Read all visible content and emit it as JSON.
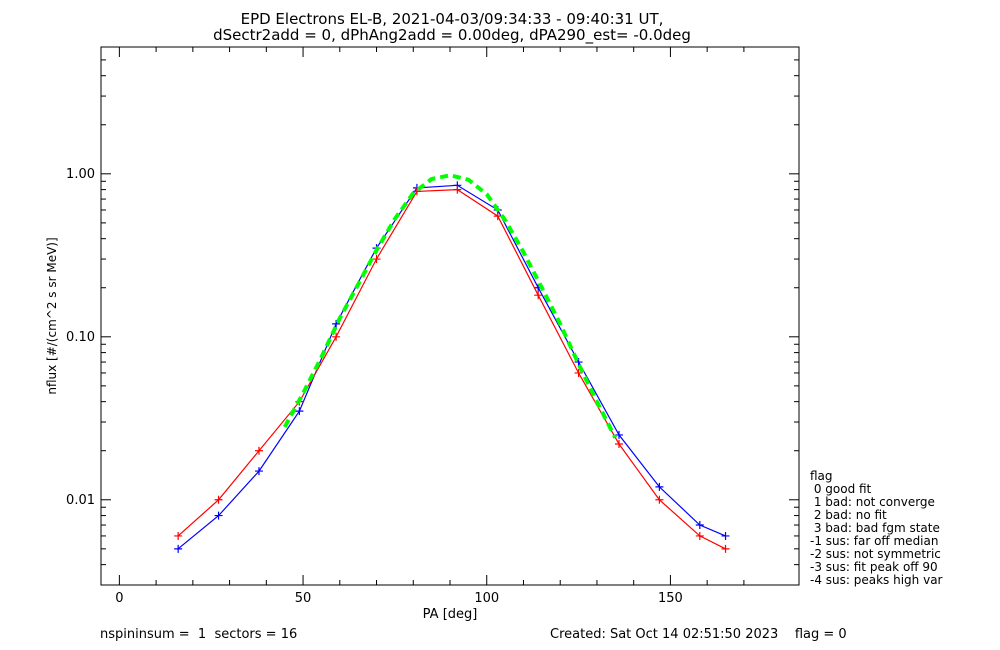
{
  "chart_data": {
    "type": "line",
    "title_line1": "EPD Electrons EL-B, 2021-04-03/09:34:33 - 09:40:31 UT,",
    "title_line2": "dSectr2add = 0, dPhAng2add = 0.00deg, dPA290_est=  -0.0deg",
    "xlabel": "PA [deg]",
    "ylabel": "nflux [#/(cm^2 s sr MeV)]",
    "xlim": [
      -5,
      185
    ],
    "ylim": [
      0.003,
      6.0
    ],
    "y_scale": "log",
    "xticks": [
      0,
      50,
      100,
      150
    ],
    "xtick_labels": [
      "0",
      "50",
      "100",
      "150"
    ],
    "yticks": [
      0.01,
      0.1,
      1.0
    ],
    "ytick_labels": [
      "0.01",
      "0.10",
      "1.00"
    ],
    "series": [
      {
        "color": "#0000ff",
        "x": [
          16,
          27,
          38,
          49,
          59,
          70,
          81,
          92,
          103,
          114,
          125,
          136,
          147,
          158,
          165
        ],
        "y": [
          0.005,
          0.008,
          0.015,
          0.035,
          0.12,
          0.35,
          0.82,
          0.85,
          0.6,
          0.2,
          0.07,
          0.025,
          0.012,
          0.007,
          0.006
        ]
      },
      {
        "color": "#ff0000",
        "x": [
          16,
          27,
          38,
          49,
          59,
          70,
          81,
          92,
          103,
          114,
          125,
          136,
          147,
          158,
          165
        ],
        "y": [
          0.006,
          0.01,
          0.02,
          0.04,
          0.1,
          0.3,
          0.78,
          0.8,
          0.55,
          0.18,
          0.06,
          0.022,
          0.01,
          0.006,
          0.005
        ]
      },
      {
        "color": "#00ff00",
        "style": "dashed",
        "x": [
          45,
          50,
          55,
          60,
          65,
          70,
          75,
          80,
          85,
          90,
          95,
          100,
          105,
          110,
          115,
          120,
          125,
          130,
          135
        ],
        "y": [
          0.028,
          0.045,
          0.075,
          0.13,
          0.21,
          0.34,
          0.53,
          0.76,
          0.93,
          0.98,
          0.92,
          0.75,
          0.52,
          0.33,
          0.2,
          0.12,
          0.068,
          0.04,
          0.024
        ]
      }
    ]
  },
  "legend": {
    "title": "flag",
    "items": [
      " 0 good fit",
      " 1 bad: not converge",
      " 2 bad: no fit",
      " 3 bad: bad fgm state",
      "-1 sus: far off median",
      "-2 sus: not symmetric",
      "-3 sus: fit peak off 90",
      "-4 sus: peaks high var"
    ]
  },
  "footer": {
    "left": "nspininsum =  1  sectors = 16",
    "right": "Created: Sat Oct 14 02:51:50 2023    flag = 0"
  }
}
